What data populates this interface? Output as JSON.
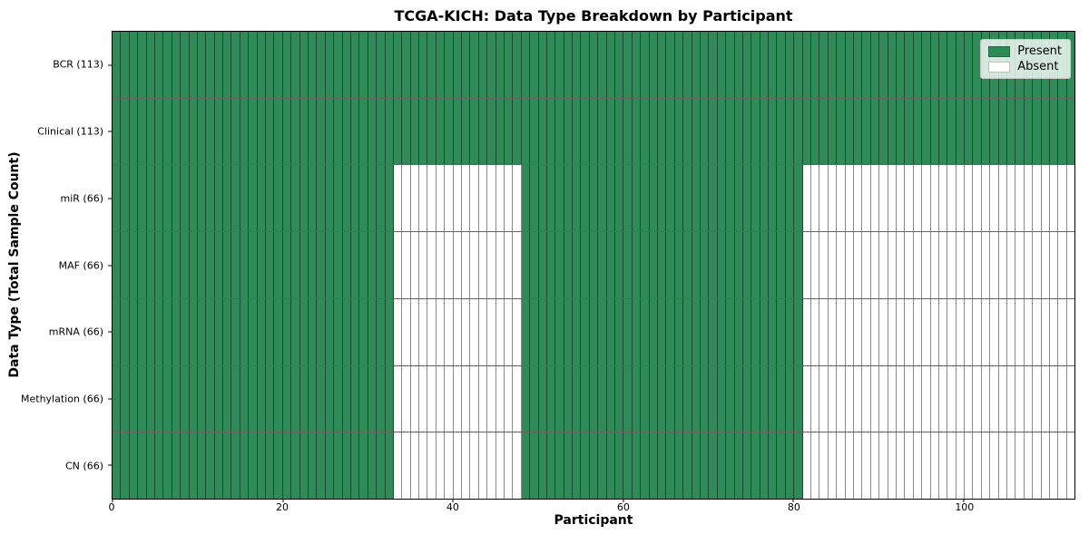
{
  "chart_data": {
    "type": "heatmap",
    "title": "TCGA-KICH: Data Type Breakdown by Participant",
    "xlabel": "Participant",
    "ylabel": "Data Type (Total Sample Count)",
    "n_participants": 113,
    "x_range": [
      0,
      113
    ],
    "xticks": [
      0,
      20,
      40,
      60,
      80,
      100
    ],
    "grid": false,
    "legend_position": "upper-right",
    "rows": [
      {
        "data_type": "BCR",
        "sample_count": 113,
        "label": "BCR (113)",
        "present_segments": [
          [
            0,
            113
          ]
        ]
      },
      {
        "data_type": "Clinical",
        "sample_count": 113,
        "label": "Clinical (113)",
        "present_segments": [
          [
            0,
            113
          ]
        ]
      },
      {
        "data_type": "miR",
        "sample_count": 66,
        "label": "miR (66)",
        "present_segments": [
          [
            0,
            33
          ],
          [
            48,
            81
          ]
        ]
      },
      {
        "data_type": "MAF",
        "sample_count": 66,
        "label": "MAF (66)",
        "present_segments": [
          [
            0,
            33
          ],
          [
            48,
            81
          ]
        ]
      },
      {
        "data_type": "mRNA",
        "sample_count": 66,
        "label": "mRNA (66)",
        "present_segments": [
          [
            0,
            33
          ],
          [
            48,
            81
          ]
        ]
      },
      {
        "data_type": "Methylation",
        "sample_count": 66,
        "label": "Methylation (66)",
        "present_segments": [
          [
            0,
            33
          ],
          [
            48,
            81
          ]
        ]
      },
      {
        "data_type": "CN",
        "sample_count": 66,
        "label": "CN (66)",
        "present_segments": [
          [
            0,
            33
          ],
          [
            48,
            81
          ]
        ]
      }
    ],
    "legend": [
      {
        "label": "Present",
        "color": "#2e8b57"
      },
      {
        "label": "Absent",
        "color": "#ffffff"
      }
    ],
    "colors": {
      "present": "#2e8b57",
      "absent": "#ffffff"
    }
  }
}
